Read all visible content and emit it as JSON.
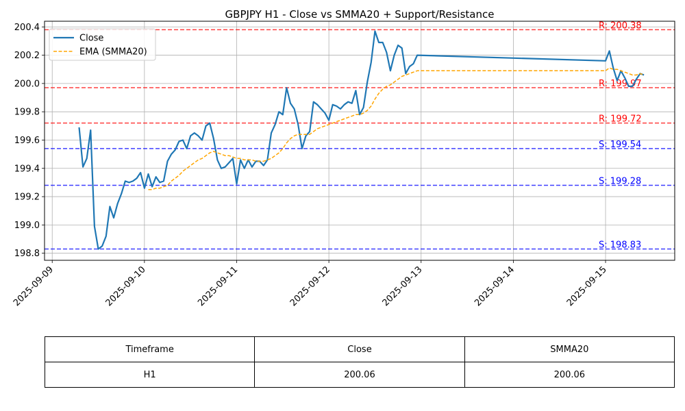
{
  "chart_data": {
    "type": "line",
    "title": "GBPJPY H1 - Close vs SMMA20 + Support/Resistance",
    "xlabel": "",
    "ylabel": "",
    "xlim": [
      "2025-09-08 22:00",
      "2025-09-15 18:00"
    ],
    "ylim": [
      198.75,
      200.44
    ],
    "x_ticks": [
      "2025-09-09",
      "2025-09-10",
      "2025-09-11",
      "2025-09-12",
      "2025-09-13",
      "2025-09-14",
      "2025-09-15"
    ],
    "y_ticks": [
      "198.8",
      "199.0",
      "199.2",
      "199.4",
      "199.6",
      "199.8",
      "200.0",
      "200.2",
      "200.4"
    ],
    "grid": true,
    "legend_position": "top-left",
    "series": [
      {
        "name": "Close",
        "color": "#1f77b4",
        "style": "solid",
        "points": [
          [
            "2025-09-09 07:00",
            199.69
          ],
          [
            "2025-09-09 08:00",
            199.41
          ],
          [
            "2025-09-09 09:00",
            199.47
          ],
          [
            "2025-09-09 10:00",
            199.67
          ],
          [
            "2025-09-09 11:00",
            198.99
          ],
          [
            "2025-09-09 12:00",
            198.83
          ],
          [
            "2025-09-09 13:00",
            198.85
          ],
          [
            "2025-09-09 14:00",
            198.92
          ],
          [
            "2025-09-09 15:00",
            199.13
          ],
          [
            "2025-09-09 16:00",
            199.05
          ],
          [
            "2025-09-09 17:00",
            199.15
          ],
          [
            "2025-09-09 18:00",
            199.22
          ],
          [
            "2025-09-09 19:00",
            199.31
          ],
          [
            "2025-09-09 20:00",
            199.3
          ],
          [
            "2025-09-09 21:00",
            199.31
          ],
          [
            "2025-09-09 22:00",
            199.33
          ],
          [
            "2025-09-09 23:00",
            199.37
          ],
          [
            "2025-09-10 00:00",
            199.26
          ],
          [
            "2025-09-10 01:00",
            199.36
          ],
          [
            "2025-09-10 02:00",
            199.27
          ],
          [
            "2025-09-10 03:00",
            199.34
          ],
          [
            "2025-09-10 04:00",
            199.3
          ],
          [
            "2025-09-10 05:00",
            199.31
          ],
          [
            "2025-09-10 06:00",
            199.45
          ],
          [
            "2025-09-10 07:00",
            199.5
          ],
          [
            "2025-09-10 08:00",
            199.53
          ],
          [
            "2025-09-10 09:00",
            199.59
          ],
          [
            "2025-09-10 10:00",
            199.6
          ],
          [
            "2025-09-10 11:00",
            199.54
          ],
          [
            "2025-09-10 12:00",
            199.63
          ],
          [
            "2025-09-10 13:00",
            199.65
          ],
          [
            "2025-09-10 14:00",
            199.63
          ],
          [
            "2025-09-10 15:00",
            199.6
          ],
          [
            "2025-09-10 16:00",
            199.7
          ],
          [
            "2025-09-10 17:00",
            199.72
          ],
          [
            "2025-09-10 18:00",
            199.61
          ],
          [
            "2025-09-10 19:00",
            199.46
          ],
          [
            "2025-09-10 20:00",
            199.4
          ],
          [
            "2025-09-10 21:00",
            199.41
          ],
          [
            "2025-09-10 22:00",
            199.44
          ],
          [
            "2025-09-10 23:00",
            199.47
          ],
          [
            "2025-09-11 00:00",
            199.29
          ],
          [
            "2025-09-11 01:00",
            199.46
          ],
          [
            "2025-09-11 02:00",
            199.4
          ],
          [
            "2025-09-11 03:00",
            199.46
          ],
          [
            "2025-09-11 04:00",
            199.41
          ],
          [
            "2025-09-11 05:00",
            199.45
          ],
          [
            "2025-09-11 06:00",
            199.45
          ],
          [
            "2025-09-11 07:00",
            199.42
          ],
          [
            "2025-09-11 08:00",
            199.46
          ],
          [
            "2025-09-11 09:00",
            199.65
          ],
          [
            "2025-09-11 10:00",
            199.71
          ],
          [
            "2025-09-11 11:00",
            199.8
          ],
          [
            "2025-09-11 12:00",
            199.78
          ],
          [
            "2025-09-11 13:00",
            199.97
          ],
          [
            "2025-09-11 14:00",
            199.86
          ],
          [
            "2025-09-11 15:00",
            199.82
          ],
          [
            "2025-09-11 16:00",
            199.71
          ],
          [
            "2025-09-11 17:00",
            199.54
          ],
          [
            "2025-09-11 18:00",
            199.63
          ],
          [
            "2025-09-11 19:00",
            199.66
          ],
          [
            "2025-09-11 20:00",
            199.87
          ],
          [
            "2025-09-11 21:00",
            199.85
          ],
          [
            "2025-09-11 22:00",
            199.82
          ],
          [
            "2025-09-11 23:00",
            199.79
          ],
          [
            "2025-09-12 00:00",
            199.74
          ],
          [
            "2025-09-12 01:00",
            199.85
          ],
          [
            "2025-09-12 02:00",
            199.84
          ],
          [
            "2025-09-12 03:00",
            199.82
          ],
          [
            "2025-09-12 04:00",
            199.85
          ],
          [
            "2025-09-12 05:00",
            199.87
          ],
          [
            "2025-09-12 06:00",
            199.86
          ],
          [
            "2025-09-12 07:00",
            199.95
          ],
          [
            "2025-09-12 08:00",
            199.78
          ],
          [
            "2025-09-12 09:00",
            199.83
          ],
          [
            "2025-09-12 10:00",
            200.01
          ],
          [
            "2025-09-12 11:00",
            200.15
          ],
          [
            "2025-09-12 12:00",
            200.37
          ],
          [
            "2025-09-12 13:00",
            200.29
          ],
          [
            "2025-09-12 14:00",
            200.29
          ],
          [
            "2025-09-12 15:00",
            200.22
          ],
          [
            "2025-09-12 16:00",
            200.09
          ],
          [
            "2025-09-12 17:00",
            200.2
          ],
          [
            "2025-09-12 18:00",
            200.27
          ],
          [
            "2025-09-12 19:00",
            200.25
          ],
          [
            "2025-09-12 20:00",
            200.07
          ],
          [
            "2025-09-12 21:00",
            200.12
          ],
          [
            "2025-09-12 22:00",
            200.14
          ],
          [
            "2025-09-12 23:00",
            200.2
          ],
          [
            "2025-09-15 00:00",
            200.16
          ],
          [
            "2025-09-15 01:00",
            200.23
          ],
          [
            "2025-09-15 02:00",
            200.11
          ],
          [
            "2025-09-15 03:00",
            200.02
          ],
          [
            "2025-09-15 04:00",
            200.09
          ],
          [
            "2025-09-15 05:00",
            200.04
          ],
          [
            "2025-09-15 06:00",
            199.98
          ],
          [
            "2025-09-15 07:00",
            199.98
          ],
          [
            "2025-09-15 08:00",
            200.03
          ],
          [
            "2025-09-15 09:00",
            200.07
          ],
          [
            "2025-09-15 10:00",
            200.06
          ]
        ]
      },
      {
        "name": "EMA (SMMA20)",
        "color": "#ffa500",
        "style": "dashed",
        "points": [
          [
            "2025-09-10 01:00",
            199.25
          ],
          [
            "2025-09-10 02:00",
            199.25
          ],
          [
            "2025-09-10 03:00",
            199.26
          ],
          [
            "2025-09-10 04:00",
            199.26
          ],
          [
            "2025-09-10 05:00",
            199.27
          ],
          [
            "2025-09-10 06:00",
            199.28
          ],
          [
            "2025-09-10 07:00",
            199.31
          ],
          [
            "2025-09-10 08:00",
            199.33
          ],
          [
            "2025-09-10 09:00",
            199.35
          ],
          [
            "2025-09-10 10:00",
            199.38
          ],
          [
            "2025-09-10 11:00",
            199.4
          ],
          [
            "2025-09-10 12:00",
            199.42
          ],
          [
            "2025-09-10 13:00",
            199.44
          ],
          [
            "2025-09-10 14:00",
            199.46
          ],
          [
            "2025-09-10 15:00",
            199.47
          ],
          [
            "2025-09-10 16:00",
            199.49
          ],
          [
            "2025-09-10 17:00",
            199.51
          ],
          [
            "2025-09-10 18:00",
            199.52
          ],
          [
            "2025-09-10 19:00",
            199.51
          ],
          [
            "2025-09-10 20:00",
            199.5
          ],
          [
            "2025-09-10 21:00",
            199.49
          ],
          [
            "2025-09-10 22:00",
            199.49
          ],
          [
            "2025-09-10 23:00",
            199.48
          ],
          [
            "2025-09-11 00:00",
            199.47
          ],
          [
            "2025-09-11 01:00",
            199.47
          ],
          [
            "2025-09-11 02:00",
            199.46
          ],
          [
            "2025-09-11 03:00",
            199.46
          ],
          [
            "2025-09-11 04:00",
            199.46
          ],
          [
            "2025-09-11 05:00",
            199.45
          ],
          [
            "2025-09-11 06:00",
            199.45
          ],
          [
            "2025-09-11 07:00",
            199.45
          ],
          [
            "2025-09-11 08:00",
            199.46
          ],
          [
            "2025-09-11 09:00",
            199.47
          ],
          [
            "2025-09-11 10:00",
            199.49
          ],
          [
            "2025-09-11 11:00",
            199.51
          ],
          [
            "2025-09-11 12:00",
            199.54
          ],
          [
            "2025-09-11 13:00",
            199.58
          ],
          [
            "2025-09-11 14:00",
            199.61
          ],
          [
            "2025-09-11 15:00",
            199.63
          ],
          [
            "2025-09-11 16:00",
            199.64
          ],
          [
            "2025-09-11 17:00",
            199.64
          ],
          [
            "2025-09-11 18:00",
            199.64
          ],
          [
            "2025-09-11 19:00",
            199.64
          ],
          [
            "2025-09-11 20:00",
            199.66
          ],
          [
            "2025-09-11 21:00",
            199.68
          ],
          [
            "2025-09-11 22:00",
            199.69
          ],
          [
            "2025-09-11 23:00",
            199.7
          ],
          [
            "2025-09-12 00:00",
            199.71
          ],
          [
            "2025-09-12 01:00",
            199.72
          ],
          [
            "2025-09-12 02:00",
            199.73
          ],
          [
            "2025-09-12 03:00",
            199.74
          ],
          [
            "2025-09-12 04:00",
            199.75
          ],
          [
            "2025-09-12 05:00",
            199.76
          ],
          [
            "2025-09-12 06:00",
            199.77
          ],
          [
            "2025-09-12 07:00",
            199.78
          ],
          [
            "2025-09-12 08:00",
            199.78
          ],
          [
            "2025-09-12 09:00",
            199.79
          ],
          [
            "2025-09-12 10:00",
            199.81
          ],
          [
            "2025-09-12 11:00",
            199.84
          ],
          [
            "2025-09-12 12:00",
            199.89
          ],
          [
            "2025-09-12 13:00",
            199.93
          ],
          [
            "2025-09-12 14:00",
            199.96
          ],
          [
            "2025-09-12 15:00",
            199.98
          ],
          [
            "2025-09-12 16:00",
            199.99
          ],
          [
            "2025-09-12 17:00",
            200.01
          ],
          [
            "2025-09-12 18:00",
            200.03
          ],
          [
            "2025-09-12 19:00",
            200.05
          ],
          [
            "2025-09-12 20:00",
            200.06
          ],
          [
            "2025-09-12 21:00",
            200.07
          ],
          [
            "2025-09-12 22:00",
            200.08
          ],
          [
            "2025-09-12 23:00",
            200.09
          ],
          [
            "2025-09-15 00:00",
            200.09
          ],
          [
            "2025-09-15 01:00",
            200.11
          ],
          [
            "2025-09-15 02:00",
            200.1
          ],
          [
            "2025-09-15 03:00",
            200.1
          ],
          [
            "2025-09-15 04:00",
            200.09
          ],
          [
            "2025-09-15 05:00",
            200.08
          ],
          [
            "2025-09-15 06:00",
            200.07
          ],
          [
            "2025-09-15 07:00",
            200.06
          ],
          [
            "2025-09-15 08:00",
            200.06
          ],
          [
            "2025-09-15 09:00",
            200.07
          ],
          [
            "2025-09-15 10:00",
            200.06
          ]
        ]
      }
    ],
    "levels": [
      {
        "kind": "resistance",
        "value": 200.38,
        "label": "R: 200.38",
        "color": "#ff0000"
      },
      {
        "kind": "resistance",
        "value": 199.97,
        "label": "R: 199.97",
        "color": "#ff0000"
      },
      {
        "kind": "resistance",
        "value": 199.72,
        "label": "R: 199.72",
        "color": "#ff0000"
      },
      {
        "kind": "support",
        "value": 199.54,
        "label": "S: 199.54",
        "color": "#0000ff"
      },
      {
        "kind": "support",
        "value": 199.28,
        "label": "S: 199.28",
        "color": "#0000ff"
      },
      {
        "kind": "support",
        "value": 198.83,
        "label": "S: 198.83",
        "color": "#0000ff"
      }
    ]
  },
  "table": {
    "headers": [
      "Timeframe",
      "Close",
      "SMMA20"
    ],
    "row": [
      "H1",
      "200.06",
      "200.06"
    ]
  }
}
